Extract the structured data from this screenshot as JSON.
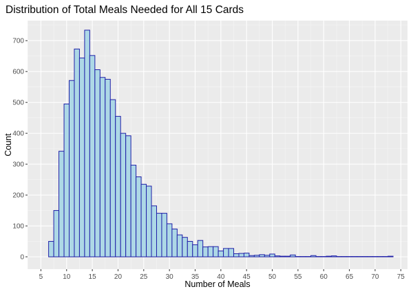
{
  "chart_data": {
    "type": "bar",
    "subtype": "histogram",
    "title": "Distribution of Total Meals Needed for All 15 Cards",
    "xlabel": "Number of Meals",
    "ylabel": "Count",
    "x": [
      7,
      8,
      9,
      10,
      11,
      12,
      13,
      14,
      15,
      16,
      17,
      18,
      19,
      20,
      21,
      22,
      23,
      24,
      25,
      26,
      27,
      28,
      29,
      30,
      31,
      32,
      33,
      34,
      35,
      36,
      37,
      38,
      39,
      40,
      41,
      42,
      43,
      44,
      45,
      46,
      47,
      48,
      49,
      50,
      51,
      52,
      53,
      54,
      55,
      56,
      57,
      58,
      59,
      60,
      61,
      62,
      63,
      64,
      65,
      66,
      67,
      68,
      69,
      70,
      71,
      72,
      73
    ],
    "values": [
      50,
      150,
      342,
      495,
      571,
      673,
      644,
      734,
      652,
      606,
      581,
      575,
      509,
      455,
      400,
      392,
      297,
      259,
      235,
      229,
      165,
      141,
      141,
      107,
      90,
      71,
      63,
      50,
      39,
      53,
      32,
      33,
      33,
      19,
      27,
      27,
      10,
      11,
      12,
      4,
      5,
      7,
      5,
      9,
      3,
      2,
      2,
      6,
      1,
      1,
      1,
      4,
      1,
      1,
      2,
      3,
      1,
      1,
      1,
      1,
      1,
      1,
      1,
      1,
      1,
      1,
      2
    ],
    "bin_width": 1,
    "xlim": [
      2.4,
      76.3
    ],
    "ylim": [
      -40,
      765
    ],
    "xticks": [
      5,
      10,
      15,
      20,
      25,
      30,
      35,
      40,
      45,
      50,
      55,
      60,
      65,
      70,
      75
    ],
    "yticks": [
      0,
      100,
      200,
      300,
      400,
      500,
      600,
      700
    ],
    "grid": true,
    "colors": {
      "fill": "#ADD8E6",
      "outline": "#1F1FA8",
      "panel": "#EBEBEB",
      "grid": "#FFFFFF"
    }
  }
}
